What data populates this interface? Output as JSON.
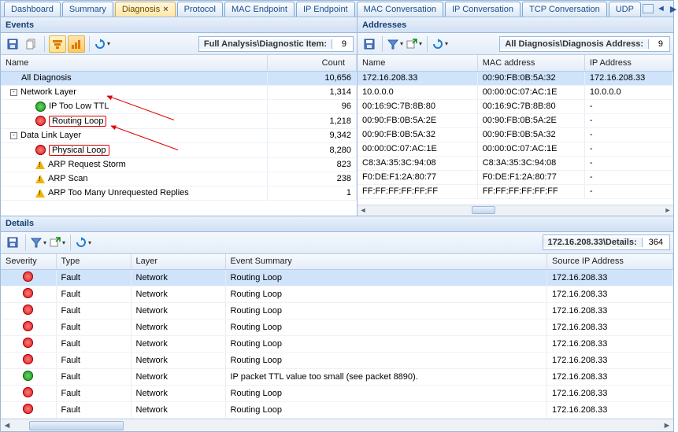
{
  "tabs": {
    "items": [
      "Dashboard",
      "Summary",
      "Diagnosis",
      "Protocol",
      "MAC Endpoint",
      "IP Endpoint",
      "MAC Conversation",
      "IP Conversation",
      "TCP Conversation",
      "UDP"
    ],
    "active_index": 2
  },
  "panels": {
    "events": {
      "title": "Events",
      "status_label": "Full Analysis\\Diagnostic Item:",
      "status_value": "9",
      "columns": {
        "name": "Name",
        "count": "Count"
      },
      "rows": [
        {
          "indent": 1,
          "toggle": null,
          "icon": null,
          "label": "All Diagnosis",
          "count": "10,656",
          "sel": true
        },
        {
          "indent": 0,
          "toggle": "-",
          "icon": null,
          "label": "Network Layer",
          "count": "1,314"
        },
        {
          "indent": 2,
          "toggle": null,
          "icon": "info",
          "label": "IP Too Low TTL",
          "count": "96"
        },
        {
          "indent": 2,
          "toggle": null,
          "icon": "err",
          "label": "Routing Loop",
          "count": "1,218",
          "redbox": true
        },
        {
          "indent": 0,
          "toggle": "-",
          "icon": null,
          "label": "Data Link Layer",
          "count": "9,342"
        },
        {
          "indent": 2,
          "toggle": null,
          "icon": "err",
          "label": "Physical Loop",
          "count": "8,280",
          "redbox": true
        },
        {
          "indent": 2,
          "toggle": null,
          "icon": "warn",
          "label": "ARP Request Storm",
          "count": "823"
        },
        {
          "indent": 2,
          "toggle": null,
          "icon": "warn",
          "label": "ARP Scan",
          "count": "238"
        },
        {
          "indent": 2,
          "toggle": null,
          "icon": "warn",
          "label": "ARP Too Many Unrequested Replies",
          "count": "1"
        }
      ]
    },
    "addresses": {
      "title": "Addresses",
      "status_label": "All Diagnosis\\Diagnosis Address:",
      "status_value": "9",
      "columns": {
        "name": "Name",
        "mac": "MAC address",
        "ip": "IP Address"
      },
      "rows": [
        {
          "name": "172.16.208.33",
          "mac": "00:90:FB:0B:5A:32",
          "ip": "172.16.208.33",
          "sel": true
        },
        {
          "name": "10.0.0.0",
          "mac": "00:00:0C:07:AC:1E",
          "ip": "10.0.0.0"
        },
        {
          "name": "00:16:9C:7B:8B:80",
          "mac": "00:16:9C:7B:8B:80",
          "ip": "-"
        },
        {
          "name": "00:90:FB:0B:5A:2E",
          "mac": "00:90:FB:0B:5A:2E",
          "ip": "-"
        },
        {
          "name": "00:90:FB:0B:5A:32",
          "mac": "00:90:FB:0B:5A:32",
          "ip": "-"
        },
        {
          "name": "00:00:0C:07:AC:1E",
          "mac": "00:00:0C:07:AC:1E",
          "ip": "-"
        },
        {
          "name": "C8:3A:35:3C:94:08",
          "mac": "C8:3A:35:3C:94:08",
          "ip": "-"
        },
        {
          "name": "F0:DE:F1:2A:80:77",
          "mac": "F0:DE:F1:2A:80:77",
          "ip": "-"
        },
        {
          "name": "FF:FF:FF:FF:FF:FF",
          "mac": "FF:FF:FF:FF:FF:FF",
          "ip": "-"
        }
      ]
    },
    "details": {
      "title": "Details",
      "status_label": "172.16.208.33\\Details:",
      "status_value": "364",
      "columns": {
        "sev": "Severity",
        "type": "Type",
        "layer": "Layer",
        "summary": "Event Summary",
        "src": "Source IP Address"
      },
      "rows": [
        {
          "icon": "err",
          "type": "Fault",
          "layer": "Network",
          "summary": "Routing Loop",
          "src": "172.16.208.33",
          "sel": true
        },
        {
          "icon": "err",
          "type": "Fault",
          "layer": "Network",
          "summary": "Routing Loop",
          "src": "172.16.208.33"
        },
        {
          "icon": "err",
          "type": "Fault",
          "layer": "Network",
          "summary": "Routing Loop",
          "src": "172.16.208.33"
        },
        {
          "icon": "err",
          "type": "Fault",
          "layer": "Network",
          "summary": "Routing Loop",
          "src": "172.16.208.33"
        },
        {
          "icon": "err",
          "type": "Fault",
          "layer": "Network",
          "summary": "Routing Loop",
          "src": "172.16.208.33"
        },
        {
          "icon": "err",
          "type": "Fault",
          "layer": "Network",
          "summary": "Routing Loop",
          "src": "172.16.208.33"
        },
        {
          "icon": "info",
          "type": "Fault",
          "layer": "Network",
          "summary": "IP packet TTL value too small (see packet 8890).",
          "src": "172.16.208.33"
        },
        {
          "icon": "err",
          "type": "Fault",
          "layer": "Network",
          "summary": "Routing Loop",
          "src": "172.16.208.33"
        },
        {
          "icon": "err",
          "type": "Fault",
          "layer": "Network",
          "summary": "Routing Loop",
          "src": "172.16.208.33"
        }
      ]
    }
  },
  "colors": {
    "tab_border": "#7ba6d6",
    "tab_active_bg": "#ffe8a6",
    "panel_border": "#9db8d9",
    "header_text": "#153f72",
    "selection": "#cfe3fa",
    "red": "#d00000"
  }
}
